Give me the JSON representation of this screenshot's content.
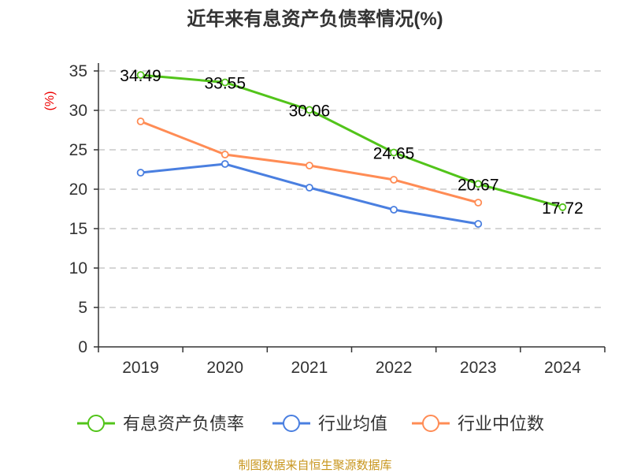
{
  "chart_data": {
    "type": "line",
    "title": "近年来有息资产负债率情况(%)",
    "ylabel": "(%)",
    "xlabel": "",
    "categories": [
      "2019",
      "2020",
      "2021",
      "2022",
      "2023",
      "2024"
    ],
    "ylim": [
      0,
      35
    ],
    "yticks": [
      "0",
      "5",
      "10",
      "15",
      "20",
      "25",
      "30",
      "35"
    ],
    "grid": true,
    "legend_position": "bottom",
    "series": [
      {
        "name": "有息资产负债率",
        "color": "#52c41a",
        "values": [
          34.49,
          33.55,
          30.06,
          24.65,
          20.67,
          17.72
        ],
        "labels": [
          "34.49",
          "33.55",
          "30.06",
          "24.65",
          "20.67",
          "17.72"
        ]
      },
      {
        "name": "行业均值",
        "color": "#4a7fe0",
        "values": [
          22.1,
          23.2,
          20.2,
          17.4,
          15.6,
          null
        ]
      },
      {
        "name": "行业中位数",
        "color": "#ff8c55",
        "values": [
          28.6,
          24.4,
          23.0,
          21.2,
          18.3,
          null
        ]
      }
    ],
    "source": "制图数据来自恒生聚源数据库"
  }
}
